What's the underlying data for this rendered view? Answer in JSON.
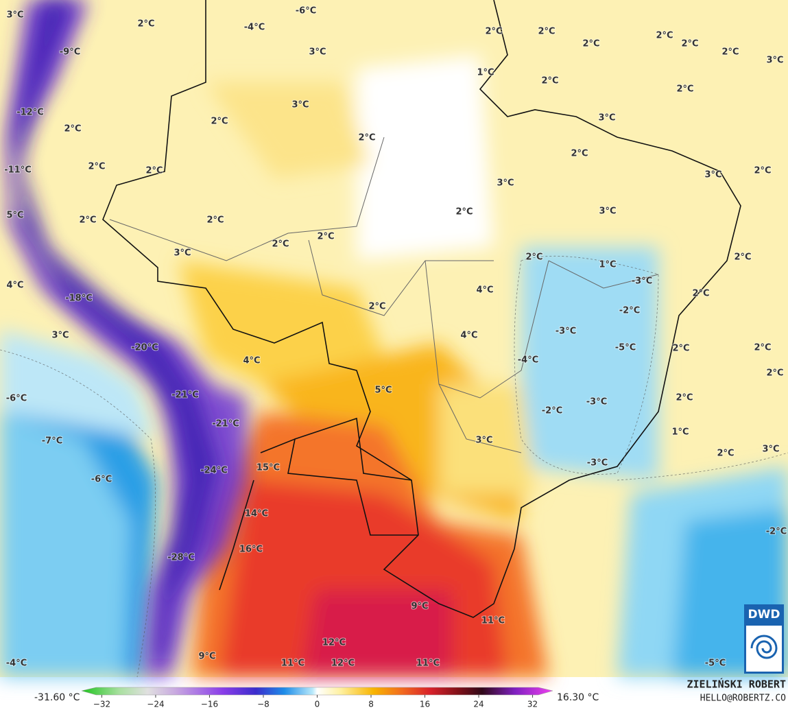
{
  "labels": [
    "3°C",
    "2°C",
    "-6°C",
    "-4°C",
    "-9°C",
    "3°C",
    "1°C",
    "2°C",
    "2°C",
    "2°C",
    "2°C",
    "2°C",
    "2°C",
    "3°C",
    "2°C",
    "2°C",
    "3°C",
    "-12°C",
    "2°C",
    "3°C",
    "2°C",
    "2°C",
    "2°C",
    "2°C",
    "2°C",
    "-11°C",
    "2°C",
    "3°C",
    "3°C",
    "5°C",
    "2°C",
    "2°C",
    "2°C",
    "3°C",
    "2°C",
    "2°C",
    "3°C",
    "2°C",
    "1°C",
    "2°C",
    "4°C",
    "-3°C",
    "4°C",
    "2°C",
    "-18°C",
    "2°C",
    "-2°C",
    "4°C",
    "-3°C",
    "3°C",
    "-20°C",
    "-5°C",
    "2°C",
    "2°C",
    "4°C",
    "-4°C",
    "2°C",
    "5°C",
    "-21°C",
    "-6°C",
    "2°C",
    "-2°C",
    "-3°C",
    "-21°C",
    "1°C",
    "-7°C",
    "3°C",
    "2°C",
    "3°C",
    "-3°C",
    "15°C",
    "-24°C",
    "-6°C",
    "14°C",
    "-2°C",
    "16°C",
    "-28°C",
    "9°C",
    "11°C",
    "12°C",
    "9°C",
    "11°C",
    "12°C",
    "11°C",
    "-4°C",
    "-5°C"
  ],
  "colorbar": {
    "min_label": "-31.60 °C",
    "max_label": "16.30 °C",
    "ticks": [
      {
        "value": -32,
        "label": "−32"
      },
      {
        "value": -24,
        "label": "−24"
      },
      {
        "value": -16,
        "label": "−16"
      },
      {
        "value": -8,
        "label": "−8"
      },
      0,
      8,
      16,
      24,
      32
    ],
    "range": [
      -35,
      35
    ]
  },
  "credit": {
    "name": "ZIELIŃSKI ROBERT",
    "contact": "HELLO@ROBERTZ.CO"
  },
  "logo": {
    "text": "DWD"
  }
}
